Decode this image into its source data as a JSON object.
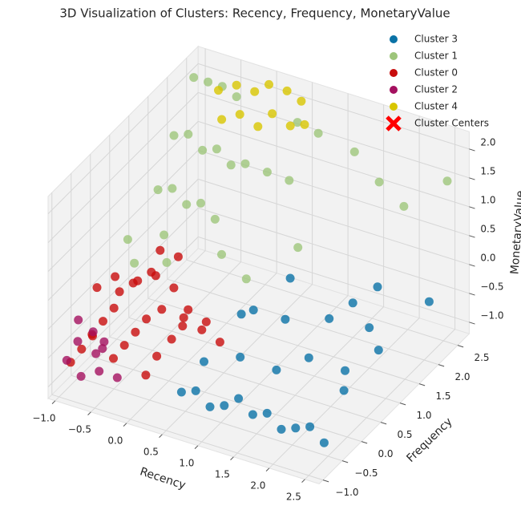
{
  "chart_data": {
    "type": "scatter3d",
    "title": "3D Visualization of Clusters: Recency, Frequency, MonetaryValue",
    "xlabel": "Recency",
    "ylabel": "Frequency",
    "zlabel": "MonetaryValue",
    "xlim": [
      -1.1,
      2.7
    ],
    "ylim": [
      -1.1,
      2.8
    ],
    "zlim": [
      -1.2,
      2.3
    ],
    "xticks": [
      {
        "value": -1.0,
        "label": "−1.0"
      },
      {
        "value": -0.5,
        "label": "−0.5"
      },
      {
        "value": 0.0,
        "label": "0.0"
      },
      {
        "value": 0.5,
        "label": "0.5"
      },
      {
        "value": 1.0,
        "label": "1.0"
      },
      {
        "value": 1.5,
        "label": "1.5"
      },
      {
        "value": 2.0,
        "label": "2.0"
      },
      {
        "value": 2.5,
        "label": "2.5"
      }
    ],
    "yticks": [
      {
        "value": -1.0,
        "label": "−1.0"
      },
      {
        "value": -0.5,
        "label": "−0.5"
      },
      {
        "value": 0.0,
        "label": "0.0"
      },
      {
        "value": 0.5,
        "label": "0.5"
      },
      {
        "value": 1.0,
        "label": "1.0"
      },
      {
        "value": 1.5,
        "label": "1.5"
      },
      {
        "value": 2.0,
        "label": "2.0"
      },
      {
        "value": 2.5,
        "label": "2.5"
      }
    ],
    "zticks": [
      {
        "value": -1.0,
        "label": "−1.0"
      },
      {
        "value": -0.5,
        "label": "−0.5"
      },
      {
        "value": 0.0,
        "label": "0.0"
      },
      {
        "value": 0.5,
        "label": "0.5"
      },
      {
        "value": 1.0,
        "label": "1.0"
      },
      {
        "value": 1.5,
        "label": "1.5"
      },
      {
        "value": 2.0,
        "label": "2.0"
      }
    ],
    "grid": true,
    "legend": "upper right",
    "series": [
      {
        "name": "Cluster 3",
        "color": "#0a72a6",
        "x": [
          0.5,
          0.7,
          0.9,
          1.1,
          1.3,
          1.5,
          1.7,
          1.9,
          2.1,
          2.3,
          2.5,
          0.6,
          1.0,
          1.4,
          1.8,
          2.2,
          2.4,
          1.2,
          1.6,
          2.0,
          0.8,
          1.5,
          2.3,
          1.9,
          2.4,
          1.0,
          0.7
        ],
        "y": [
          -0.6,
          -0.6,
          -0.6,
          -0.6,
          -0.6,
          -0.6,
          -0.6,
          -0.6,
          -0.6,
          -0.6,
          -0.6,
          -0.2,
          0.0,
          0.2,
          0.3,
          0.5,
          1.0,
          0.8,
          1.2,
          1.5,
          0.4,
          2.0,
          2.5,
          1.9,
          0.1,
          1.3,
          0.9
        ],
        "z": [
          -0.8,
          -0.7,
          -0.9,
          -0.8,
          -0.6,
          -0.8,
          -0.7,
          -0.9,
          -0.8,
          -0.7,
          -0.9,
          -0.5,
          -0.4,
          -0.6,
          -0.3,
          -0.5,
          -0.4,
          -0.2,
          -0.3,
          -0.5,
          0.0,
          -0.6,
          -0.6,
          -0.1,
          -0.5,
          0.1,
          -0.3
        ]
      },
      {
        "name": "Cluster 1",
        "color": "#9dc57a",
        "x": [
          -1.0,
          -0.8,
          -0.6,
          -0.4,
          -0.9,
          -0.7,
          -0.5,
          -0.3,
          -0.1,
          0.1,
          -0.8,
          -0.6,
          -0.4,
          -0.2,
          0.0,
          0.3,
          0.5,
          -0.9,
          -0.5,
          0.2,
          0.8,
          1.2,
          1.6,
          2.0,
          2.5,
          1.0,
          0.6,
          -0.7,
          -0.3,
          0.4
        ],
        "y": [
          2.5,
          2.5,
          2.5,
          2.5,
          1.8,
          1.8,
          1.8,
          1.8,
          1.8,
          1.8,
          1.2,
          1.2,
          1.2,
          1.2,
          1.2,
          2.0,
          2.2,
          0.6,
          0.8,
          1.0,
          2.4,
          2.6,
          2.5,
          2.4,
          2.6,
          1.5,
          0.9,
          0.4,
          0.5,
          2.6
        ],
        "z": [
          2.0,
          2.0,
          2.0,
          1.9,
          1.5,
          1.6,
          1.4,
          1.5,
          1.3,
          1.4,
          1.0,
          1.1,
          0.9,
          1.0,
          0.8,
          1.2,
          1.0,
          0.5,
          0.6,
          0.4,
          1.8,
          1.5,
          1.2,
          1.0,
          1.5,
          0.5,
          0.2,
          0.3,
          0.4,
          1.7
        ]
      },
      {
        "name": "Cluster 0",
        "color": "#c80d0d",
        "x": [
          -1.0,
          -0.9,
          -0.8,
          -0.7,
          -0.6,
          -0.5,
          -0.4,
          -0.3,
          -0.2,
          -0.1,
          0.0,
          0.1,
          0.2,
          0.3,
          -0.9,
          -0.7,
          -0.5,
          -0.3,
          -0.1,
          0.1,
          0.3,
          0.5,
          -0.8,
          -0.6,
          -0.4,
          -0.2,
          0.0,
          0.2,
          -0.5,
          -0.3
        ],
        "y": [
          -0.7,
          -0.6,
          -0.5,
          -0.7,
          -0.6,
          -0.5,
          -0.7,
          -0.6,
          -0.5,
          -0.4,
          -0.6,
          -0.5,
          -0.3,
          -0.2,
          -0.2,
          -0.1,
          0.0,
          0.1,
          0.0,
          0.2,
          0.3,
          0.4,
          0.2,
          0.3,
          0.4,
          0.5,
          0.5,
          0.6,
          0.7,
          0.8
        ],
        "z": [
          -0.8,
          -0.6,
          -0.4,
          -0.2,
          0.0,
          0.2,
          -0.5,
          -0.3,
          -0.1,
          0.1,
          -0.7,
          -0.4,
          -0.2,
          0.0,
          0.2,
          0.4,
          0.3,
          0.5,
          0.0,
          -0.2,
          -0.4,
          -0.6,
          -0.1,
          0.1,
          0.2,
          0.0,
          -0.3,
          -0.5,
          0.4,
          0.3
        ]
      },
      {
        "name": "Cluster 2",
        "color": "#a4105f",
        "x": [
          -1.0,
          -0.9,
          -0.8,
          -1.0,
          -0.7,
          -0.6,
          -0.9,
          -0.5,
          -0.8,
          -0.4
        ],
        "y": [
          -0.8,
          -0.7,
          -0.8,
          -0.5,
          -0.6,
          -0.7,
          -0.3,
          -0.8,
          -0.2,
          -0.6
        ],
        "z": [
          -0.7,
          -0.4,
          -0.9,
          -0.2,
          -0.6,
          -0.8,
          -0.5,
          -0.3,
          -0.7,
          -0.9
        ]
      },
      {
        "name": "Cluster 4",
        "color": "#d8c600",
        "x": [
          -0.6,
          -0.4,
          -0.2,
          0.0,
          0.2,
          0.4,
          -0.5,
          -0.3,
          -0.1,
          0.1,
          0.3,
          0.5
        ],
        "y": [
          2.4,
          2.5,
          2.6,
          2.6,
          2.7,
          2.7,
          2.3,
          2.4,
          2.5,
          2.5,
          2.6,
          2.6
        ],
        "z": [
          2.0,
          2.1,
          2.0,
          2.2,
          2.1,
          2.0,
          1.6,
          1.7,
          1.5,
          1.8,
          1.6,
          1.7
        ]
      },
      {
        "name": "Cluster Centers",
        "color": "#ff0000"
      }
    ]
  }
}
